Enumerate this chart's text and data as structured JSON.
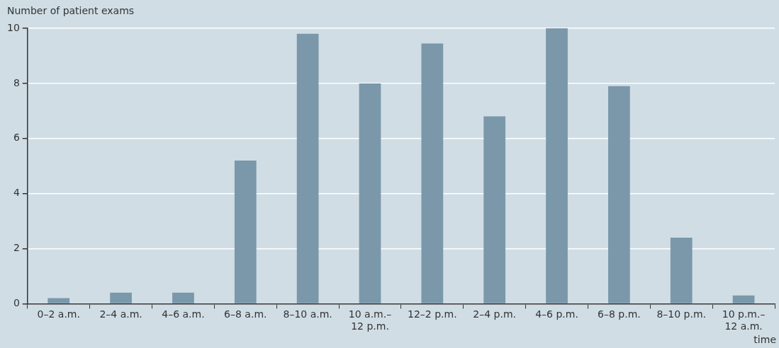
{
  "chart_data": {
    "type": "bar",
    "ylabel": "Number of patient exams",
    "xlabel": "time",
    "categories": [
      "0–2 a.m.",
      "2–4 a.m.",
      "4–6 a.m.",
      "6–8 a.m.",
      "8–10 a.m.",
      "10 a.m.–12 p.m.",
      "12–2 p.m.",
      "2–4 p.m.",
      "4–6 p.m.",
      "6–8 p.m.",
      "8–10 p.m.",
      "10 p.m.–12 a.m."
    ],
    "values": [
      0.2,
      0.4,
      0.4,
      5.2,
      9.8,
      8.0,
      9.45,
      6.8,
      10,
      7.9,
      2.4,
      0.3
    ],
    "color": "#7a98aa",
    "ylim": [
      0,
      10
    ],
    "yticks": [
      0,
      2,
      4,
      6,
      8,
      10
    ],
    "grid": "y",
    "legend": false
  }
}
